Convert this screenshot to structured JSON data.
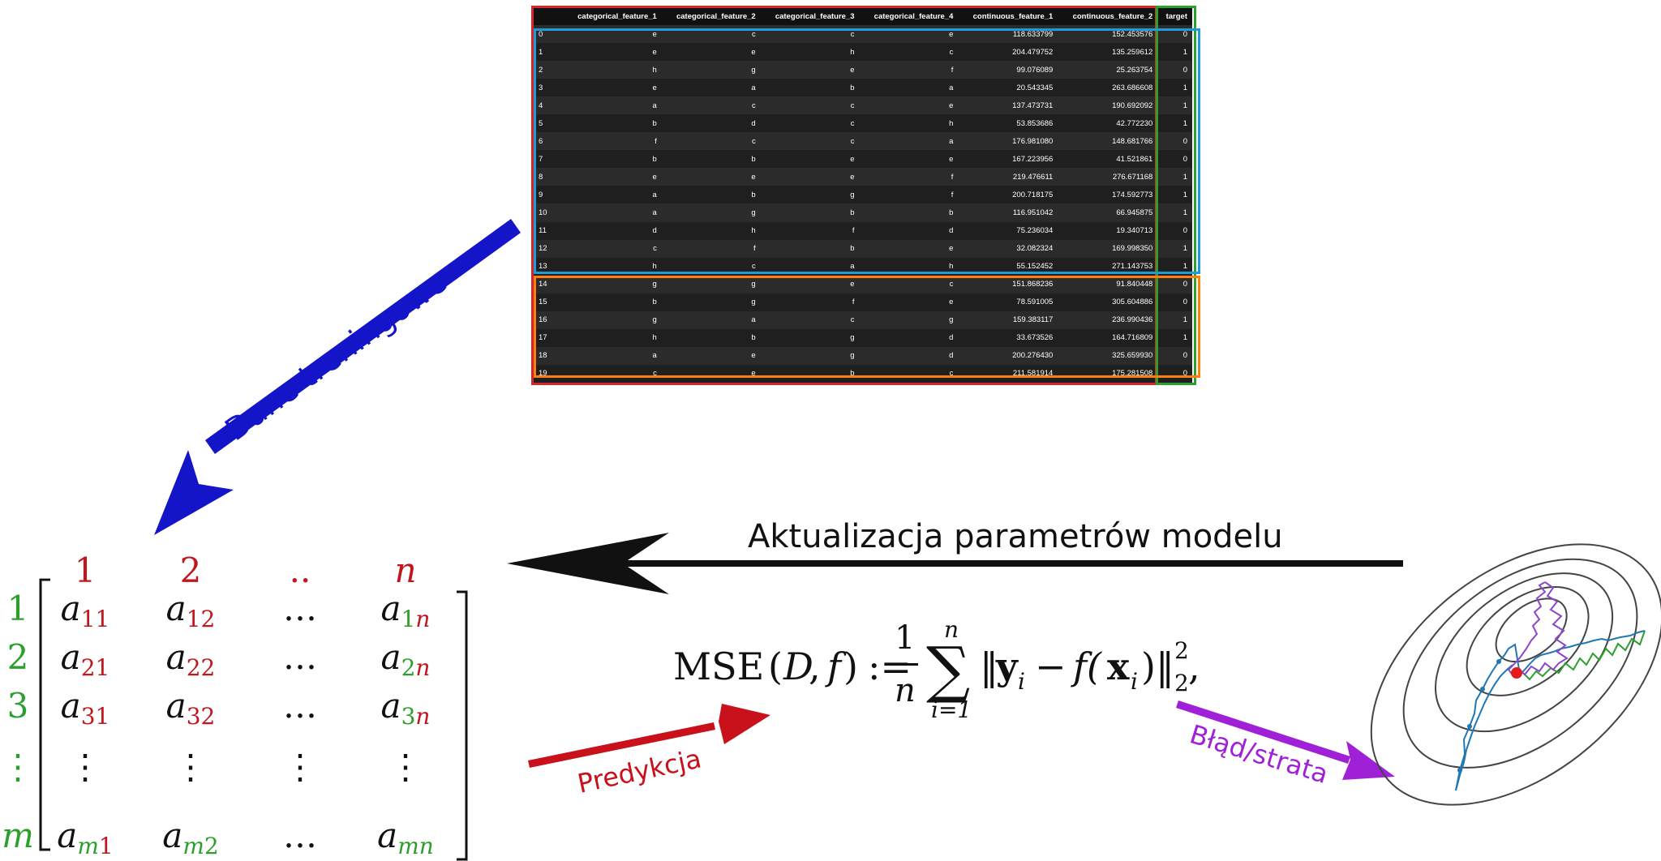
{
  "dataframe": {
    "columns": [
      "",
      "categorical_feature_1",
      "categorical_feature_2",
      "categorical_feature_3",
      "categorical_feature_4",
      "continuous_feature_1",
      "continuous_feature_2",
      "target"
    ],
    "rows": [
      [
        "0",
        "e",
        "c",
        "c",
        "e",
        "118.633799",
        "152.453576",
        "0"
      ],
      [
        "1",
        "e",
        "e",
        "h",
        "c",
        "204.479752",
        "135.259612",
        "1"
      ],
      [
        "2",
        "h",
        "g",
        "e",
        "f",
        "99.076089",
        "25.263754",
        "0"
      ],
      [
        "3",
        "e",
        "a",
        "b",
        "a",
        "20.543345",
        "263.686608",
        "1"
      ],
      [
        "4",
        "a",
        "c",
        "c",
        "e",
        "137.473731",
        "190.692092",
        "1"
      ],
      [
        "5",
        "b",
        "d",
        "c",
        "h",
        "53.853686",
        "42.772230",
        "1"
      ],
      [
        "6",
        "f",
        "c",
        "c",
        "a",
        "176.981080",
        "148.681766",
        "0"
      ],
      [
        "7",
        "b",
        "b",
        "e",
        "e",
        "167.223956",
        "41.521861",
        "0"
      ],
      [
        "8",
        "e",
        "e",
        "e",
        "f",
        "219.476611",
        "276.671168",
        "1"
      ],
      [
        "9",
        "a",
        "b",
        "g",
        "f",
        "200.718175",
        "174.592773",
        "1"
      ],
      [
        "10",
        "a",
        "g",
        "b",
        "b",
        "116.951042",
        "66.945875",
        "1"
      ],
      [
        "11",
        "d",
        "h",
        "f",
        "d",
        "75.236034",
        "19.340713",
        "0"
      ],
      [
        "12",
        "c",
        "f",
        "b",
        "e",
        "32.082324",
        "169.998350",
        "1"
      ],
      [
        "13",
        "h",
        "c",
        "a",
        "h",
        "55.152452",
        "271.143753",
        "1"
      ],
      [
        "14",
        "g",
        "g",
        "e",
        "c",
        "151.868236",
        "91.840448",
        "0"
      ],
      [
        "15",
        "b",
        "g",
        "f",
        "e",
        "78.591005",
        "305.604886",
        "0"
      ],
      [
        "16",
        "g",
        "a",
        "c",
        "g",
        "159.383117",
        "236.990436",
        "1"
      ],
      [
        "17",
        "h",
        "b",
        "g",
        "d",
        "33.673526",
        "164.716809",
        "1"
      ],
      [
        "18",
        "a",
        "e",
        "g",
        "d",
        "200.276430",
        "325.659930",
        "0"
      ],
      [
        "19",
        "c",
        "e",
        "b",
        "c",
        "211.581914",
        "175.281508",
        "0"
      ]
    ]
  },
  "labels": {
    "training_data": "Dane treningowe",
    "update_params": "Aktualizacja parametrów modelu",
    "prediction": "Predykcja",
    "loss": "Błąd/strata"
  },
  "matrix": {
    "col_headers": [
      "1",
      "2",
      "..",
      "n"
    ],
    "row_headers": [
      "1",
      "2",
      "3",
      "⋮",
      "m"
    ],
    "entries": [
      [
        [
          "a",
          "11",
          "rr"
        ],
        [
          "a",
          "12",
          "rr"
        ],
        [
          "…"
        ],
        [
          "a",
          "1n",
          "gr"
        ]
      ],
      [
        [
          "a",
          "21",
          "rr"
        ],
        [
          "a",
          "22",
          "rr"
        ],
        [
          "…"
        ],
        [
          "a",
          "2n",
          "gr"
        ]
      ],
      [
        [
          "a",
          "31",
          "rr"
        ],
        [
          "a",
          "32",
          "rr"
        ],
        [
          "…"
        ],
        [
          "a",
          "3n",
          "gr"
        ]
      ],
      [
        [
          "⋮"
        ],
        [
          "⋮"
        ],
        [
          "⋮"
        ],
        [
          "⋮"
        ]
      ],
      [
        [
          "a",
          "m1",
          "gr"
        ],
        [
          "a",
          "m2",
          "gg"
        ],
        [
          "…"
        ],
        [
          "a",
          "mn",
          "gg"
        ]
      ]
    ]
  },
  "formula": {
    "lhs_name": "MSE",
    "lhs_args_open": "(",
    "lhs_D": "D",
    "lhs_comma": ", ",
    "lhs_f": "f",
    "lhs_close": ")",
    "assign": ":=",
    "frac_num": "1",
    "frac_den": "n",
    "sum": "∑",
    "sum_upper": "n",
    "sum_lower": "i=1",
    "body_open": "‖",
    "y": "y",
    "i1": "i",
    "minus": "−",
    "fx": "f(",
    "x": "x",
    "i2": "i",
    "fx_close": ")",
    "body_close": "‖",
    "sup": "2",
    "sub": "2",
    "tail": ","
  },
  "colors": {
    "red_label": "#c0171f",
    "green_label": "#2ca02c",
    "blue_arrow": "#1414c8",
    "red_arrow": "#c8111a",
    "purple_arrow": "#a020d8",
    "black": "#111111"
  }
}
